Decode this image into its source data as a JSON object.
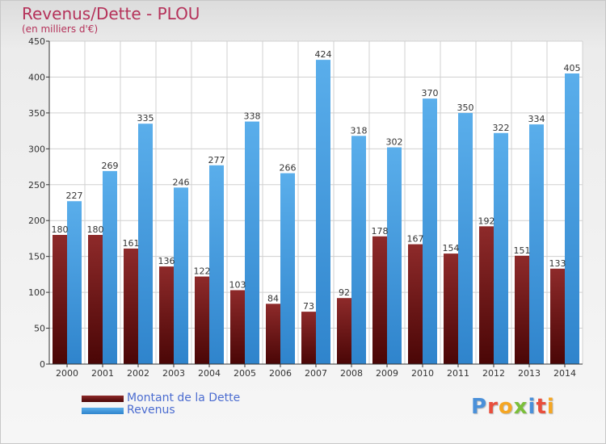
{
  "chart_data": {
    "type": "bar",
    "title": "Revenus/Dette - PLOU",
    "subtitle": "(en milliers d'€)",
    "categories": [
      "2000",
      "2001",
      "2002",
      "2003",
      "2004",
      "2005",
      "2006",
      "2007",
      "2008",
      "2009",
      "2010",
      "2011",
      "2012",
      "2013",
      "2014"
    ],
    "series": [
      {
        "name": "Montant de la Dette",
        "color": "#7a1d1d",
        "values": [
          180,
          180,
          161,
          136,
          122,
          103,
          84,
          73,
          92,
          178,
          167,
          154,
          192,
          151,
          133
        ]
      },
      {
        "name": "Revenus",
        "color": "#4a9de0",
        "values": [
          227,
          269,
          335,
          246,
          277,
          338,
          266,
          424,
          318,
          302,
          370,
          350,
          322,
          334,
          405
        ]
      }
    ],
    "ylim": [
      0,
      450
    ],
    "yticks": [
      0,
      50,
      100,
      150,
      200,
      250,
      300,
      350,
      400,
      450
    ],
    "grid": true,
    "legend_position": "bottom-left"
  },
  "logo": {
    "text": "Proxiti",
    "letters": [
      {
        "char": "P",
        "color": "#4a90d9"
      },
      {
        "char": "r",
        "color": "#e94e3c"
      },
      {
        "char": "o",
        "color": "#f5a623"
      },
      {
        "char": "x",
        "color": "#7bbf3a"
      },
      {
        "char": "i",
        "color": "#4a90d9"
      },
      {
        "char": "t",
        "color": "#e94e3c"
      },
      {
        "char": "i",
        "color": "#f5a623"
      }
    ]
  }
}
